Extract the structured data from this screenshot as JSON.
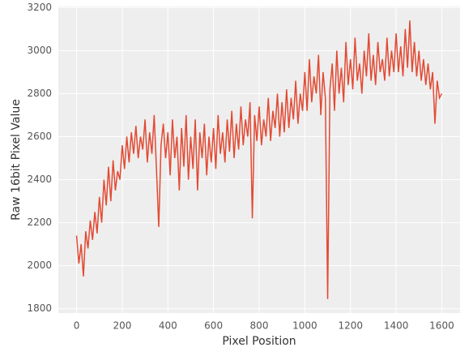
{
  "chart_data": {
    "type": "line",
    "xlabel": "Pixel Position",
    "ylabel": "Raw 16bit Pixel Value",
    "x": [
      0,
      10,
      20,
      30,
      40,
      50,
      60,
      70,
      80,
      90,
      100,
      110,
      120,
      130,
      140,
      150,
      160,
      170,
      180,
      190,
      200,
      210,
      220,
      230,
      240,
      250,
      260,
      270,
      280,
      290,
      300,
      310,
      320,
      330,
      340,
      350,
      360,
      370,
      380,
      390,
      400,
      410,
      420,
      430,
      440,
      450,
      460,
      470,
      480,
      490,
      500,
      510,
      520,
      530,
      540,
      550,
      560,
      570,
      580,
      590,
      600,
      610,
      620,
      630,
      640,
      650,
      660,
      670,
      680,
      690,
      700,
      710,
      720,
      730,
      740,
      750,
      760,
      770,
      780,
      790,
      800,
      810,
      820,
      830,
      840,
      850,
      860,
      870,
      880,
      890,
      900,
      910,
      920,
      930,
      940,
      950,
      960,
      970,
      980,
      990,
      1000,
      1010,
      1020,
      1030,
      1040,
      1050,
      1060,
      1070,
      1080,
      1090,
      1100,
      1110,
      1120,
      1130,
      1140,
      1150,
      1160,
      1170,
      1180,
      1190,
      1200,
      1210,
      1220,
      1230,
      1240,
      1250,
      1260,
      1270,
      1280,
      1290,
      1300,
      1310,
      1320,
      1330,
      1340,
      1350,
      1360,
      1370,
      1380,
      1390,
      1400,
      1410,
      1420,
      1430,
      1440,
      1450,
      1460,
      1470,
      1480,
      1490,
      1500,
      1510,
      1520,
      1530,
      1540,
      1550,
      1560,
      1570,
      1580,
      1590,
      1600
    ],
    "series": [
      {
        "color": "#e24a33",
        "values": [
          2140,
          2010,
          2100,
          1950,
          2160,
          2080,
          2210,
          2120,
          2250,
          2150,
          2320,
          2200,
          2400,
          2280,
          2460,
          2300,
          2490,
          2350,
          2440,
          2400,
          2560,
          2450,
          2600,
          2480,
          2620,
          2520,
          2650,
          2500,
          2600,
          2540,
          2680,
          2480,
          2620,
          2520,
          2700,
          2450,
          2180,
          2560,
          2660,
          2500,
          2620,
          2420,
          2680,
          2500,
          2600,
          2350,
          2640,
          2460,
          2700,
          2400,
          2600,
          2450,
          2680,
          2350,
          2620,
          2500,
          2660,
          2420,
          2600,
          2480,
          2640,
          2450,
          2700,
          2520,
          2620,
          2480,
          2680,
          2530,
          2720,
          2500,
          2660,
          2540,
          2740,
          2560,
          2680,
          2600,
          2760,
          2220,
          2700,
          2580,
          2740,
          2560,
          2680,
          2600,
          2780,
          2580,
          2720,
          2640,
          2800,
          2600,
          2760,
          2620,
          2820,
          2640,
          2780,
          2680,
          2860,
          2660,
          2800,
          2720,
          2900,
          2720,
          2960,
          2760,
          2880,
          2800,
          2980,
          2700,
          2900,
          2780,
          1845,
          2820,
          2940,
          2720,
          3000,
          2800,
          2920,
          2760,
          3040,
          2840,
          2960,
          2820,
          3060,
          2860,
          2940,
          2800,
          3000,
          2880,
          3080,
          2860,
          2980,
          2840,
          3040,
          2900,
          2960,
          2860,
          3060,
          2880,
          3000,
          2900,
          3080,
          2900,
          3020,
          2880,
          3100,
          2920,
          3140,
          2900,
          3040,
          2880,
          3000,
          2860,
          2960,
          2840,
          2940,
          2820,
          2900,
          2660,
          2860,
          2780,
          2800
        ]
      }
    ],
    "xlim": [
      -80,
      1680
    ],
    "ylim": [
      1780,
      3205
    ],
    "xticks": [
      0,
      200,
      400,
      600,
      800,
      1000,
      1200,
      1400,
      1600
    ],
    "yticks": [
      1800,
      2000,
      2200,
      2400,
      2600,
      2800,
      3000,
      3200
    ],
    "grid": true
  }
}
